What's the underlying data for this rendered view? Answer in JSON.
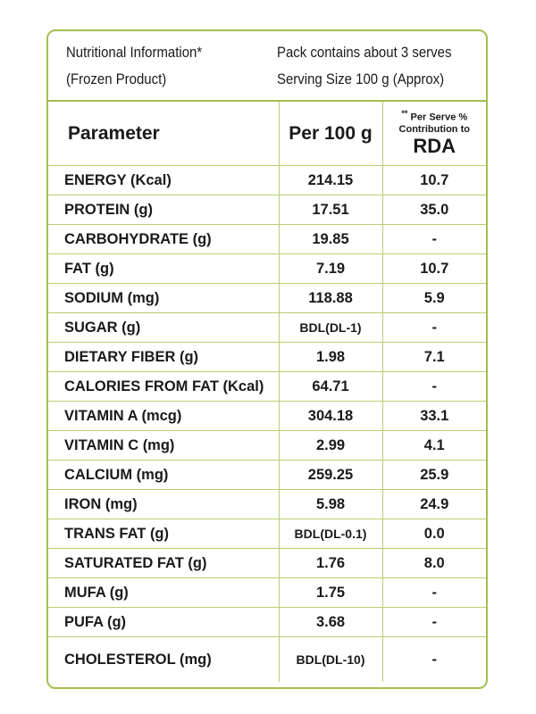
{
  "header": {
    "title_lines": [
      "Nutritional Information*",
      "(Frozen Product)"
    ],
    "serving_lines": [
      "Pack contains about 3 serves",
      "Serving Size 100 g (Approx)"
    ]
  },
  "table": {
    "columns": [
      "Parameter",
      "Per 100 g"
    ],
    "rda_header": {
      "marker": "**",
      "lines": [
        "Per Serve %",
        "Contribution to"
      ],
      "emphasis": "RDA"
    },
    "rows": [
      [
        "ENERGY (Kcal)",
        "214.15",
        "10.7"
      ],
      [
        "PROTEIN (g)",
        "17.51",
        "35.0"
      ],
      [
        "CARBOHYDRATE (g)",
        "19.85",
        "-"
      ],
      [
        "FAT (g)",
        "7.19",
        "10.7"
      ],
      [
        "SODIUM (mg)",
        "118.88",
        "5.9"
      ],
      [
        "SUGAR (g)",
        "BDL(DL-1)",
        "-"
      ],
      [
        "DIETARY FIBER (g)",
        "1.98",
        "7.1"
      ],
      [
        "CALORIES FROM FAT (Kcal)",
        "64.71",
        "-"
      ],
      [
        "VITAMIN A (mcg)",
        "304.18",
        "33.1"
      ],
      [
        "VITAMIN C (mg)",
        "2.99",
        "4.1"
      ],
      [
        "CALCIUM (mg)",
        "259.25",
        "25.9"
      ],
      [
        "IRON (mg)",
        "5.98",
        "24.9"
      ],
      [
        "TRANS FAT (g)",
        "BDL(DL-0.1)",
        "0.0"
      ],
      [
        "SATURATED FAT (g)",
        "1.76",
        "8.0"
      ],
      [
        "MUFA (g)",
        "1.75",
        "-"
      ],
      [
        "PUFA (g)",
        "3.68",
        "-"
      ],
      [
        "CHOLESTEROL (mg)",
        "BDL(DL-10)",
        "-"
      ]
    ]
  }
}
